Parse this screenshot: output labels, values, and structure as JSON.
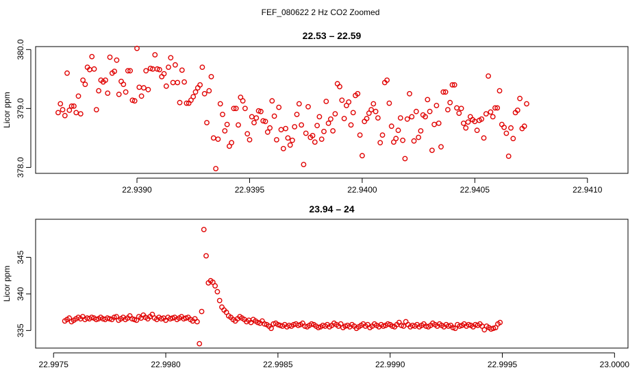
{
  "figure": {
    "suptitle": "FEF_080622  2 Hz CO2 Zoomed"
  },
  "chart_data": [
    {
      "type": "scatter",
      "title": "22.53 – 22.59",
      "xlabel": "",
      "ylabel": "Licor ppm",
      "xlim": [
        22.93855,
        22.94118
      ],
      "ylim": [
        377.9,
        380.05
      ],
      "xticks": [
        22.939,
        22.9395,
        22.94,
        22.9405,
        22.941
      ],
      "xtick_labels": [
        "22.9390",
        "22.9395",
        "22.9400",
        "22.9405",
        "22.9410"
      ],
      "yticks": [
        378,
        379,
        380
      ],
      "ytick_labels": [
        "378.0",
        "379.0",
        "380.0"
      ],
      "grid": false,
      "marker": "open-circle",
      "color": "#e00000",
      "x_start": 22.93865,
      "x_step": 1e-05,
      "y": [
        378.93,
        379.08,
        378.98,
        378.88,
        379.6,
        378.97,
        379.04,
        379.04,
        378.93,
        379.21,
        378.91,
        379.48,
        379.41,
        379.7,
        379.66,
        379.88,
        379.67,
        378.98,
        379.3,
        379.48,
        379.45,
        379.48,
        379.26,
        379.87,
        379.6,
        379.63,
        379.82,
        379.24,
        379.46,
        379.41,
        379.28,
        379.64,
        379.64,
        379.14,
        379.13,
        380.02,
        379.36,
        379.21,
        379.35,
        379.64,
        379.32,
        379.68,
        379.67,
        379.91,
        379.67,
        379.66,
        379.54,
        379.59,
        379.38,
        379.7,
        379.86,
        379.44,
        379.74,
        379.44,
        379.1,
        379.65,
        379.45,
        379.09,
        379.09,
        379.14,
        379.2,
        379.28,
        379.35,
        379.4,
        379.7,
        379.25,
        378.76,
        379.3,
        379.54,
        378.5,
        377.98,
        378.48,
        379.08,
        378.9,
        378.62,
        378.73,
        378.36,
        378.42,
        379.0,
        379.0,
        378.72,
        379.19,
        379.13,
        379.0,
        378.57,
        378.47,
        378.86,
        378.76,
        378.84,
        378.96,
        378.95,
        378.79,
        378.78,
        378.6,
        378.67,
        379.13,
        378.87,
        378.47,
        379.02,
        378.64,
        378.32,
        378.66,
        378.5,
        378.38,
        378.46,
        378.69,
        378.9,
        379.08,
        378.72,
        378.05,
        378.58,
        379.03,
        378.51,
        378.54,
        378.43,
        378.71,
        378.86,
        378.48,
        378.61,
        379.12,
        378.75,
        378.82,
        378.62,
        378.91,
        379.42,
        379.37,
        379.14,
        378.83,
        379.05,
        379.11,
        378.72,
        378.93,
        379.22,
        379.25,
        378.55,
        378.2,
        378.78,
        378.83,
        378.92,
        378.98,
        379.08,
        378.95,
        378.84,
        378.42,
        378.55,
        379.44,
        379.48,
        379.09,
        378.7,
        378.43,
        378.49,
        378.63,
        378.84,
        378.46,
        378.15,
        378.82,
        379.25,
        378.86,
        378.45,
        378.95,
        378.51,
        378.62,
        378.89,
        378.86,
        379.15,
        378.95,
        378.29,
        378.73,
        379.05,
        378.75,
        378.35,
        379.28,
        379.28,
        378.98,
        379.1,
        379.4,
        379.4,
        379.01,
        378.92,
        379.0,
        378.75,
        378.67,
        378.77,
        378.86,
        378.81,
        378.78,
        378.63,
        378.8,
        378.82,
        378.5,
        378.91,
        379.55,
        378.94,
        378.86,
        379.01,
        379.01,
        379.3,
        378.73,
        378.68,
        378.58,
        378.19,
        378.67,
        378.49,
        378.93,
        378.97,
        379.17,
        378.66,
        378.7,
        379.08
      ]
    },
    {
      "type": "scatter",
      "title": "23.94 – 24",
      "xlabel": "",
      "ylabel": "Licor ppm",
      "xlim": [
        22.99742,
        23.00006
      ],
      "ylim": [
        332.6,
        350.2
      ],
      "xticks": [
        22.9975,
        22.998,
        22.9985,
        22.999,
        22.9995,
        23.0
      ],
      "xtick_labels": [
        "22.9975",
        "22.9980",
        "22.9985",
        "22.9990",
        "22.9995",
        "23.0000"
      ],
      "yticks": [
        335,
        340,
        345
      ],
      "ytick_labels": [
        "335",
        "340",
        "345"
      ],
      "grid": false,
      "marker": "open-circle",
      "color": "#e00000",
      "x_start": 22.99755,
      "x_step": 1e-05,
      "y": [
        336.3,
        336.5,
        336.7,
        336.2,
        336.4,
        336.6,
        336.8,
        336.6,
        336.9,
        336.5,
        336.7,
        336.6,
        336.8,
        336.7,
        336.5,
        336.6,
        336.8,
        336.6,
        336.5,
        336.7,
        336.6,
        336.5,
        336.8,
        336.9,
        336.4,
        336.6,
        336.8,
        336.5,
        336.7,
        337.0,
        336.6,
        336.5,
        336.4,
        336.9,
        336.7,
        337.1,
        336.8,
        336.6,
        336.9,
        337.2,
        336.7,
        336.5,
        336.8,
        336.6,
        336.7,
        336.4,
        336.8,
        336.6,
        336.7,
        336.8,
        336.5,
        336.7,
        336.9,
        336.6,
        336.7,
        336.8,
        336.5,
        336.3,
        336.6,
        336.2,
        333.2,
        337.6,
        348.8,
        345.2,
        341.5,
        341.8,
        341.6,
        341.1,
        340.3,
        339.1,
        338.2,
        337.8,
        337.5,
        337.0,
        336.8,
        336.5,
        336.3,
        336.6,
        336.9,
        336.7,
        336.5,
        336.2,
        336.4,
        336.1,
        336.5,
        336.3,
        336.1,
        336.0,
        336.3,
        335.9,
        335.8,
        335.6,
        335.3,
        335.9,
        336.0,
        335.8,
        335.7,
        335.6,
        335.8,
        335.5,
        335.7,
        335.6,
        335.8,
        335.9,
        335.7,
        335.8,
        336.0,
        335.6,
        335.5,
        335.7,
        335.9,
        335.8,
        335.6,
        335.4,
        335.5,
        335.7,
        335.6,
        335.8,
        335.5,
        335.7,
        336.0,
        335.8,
        335.6,
        335.9,
        335.4,
        335.6,
        335.7,
        335.5,
        335.8,
        335.6,
        335.3,
        335.5,
        335.7,
        335.9,
        335.6,
        335.8,
        335.4,
        335.6,
        335.9,
        335.7,
        335.5,
        335.8,
        335.6,
        335.7,
        335.9,
        335.8,
        335.6,
        335.5,
        335.8,
        336.1,
        335.7,
        335.6,
        336.2,
        335.8,
        335.5,
        335.7,
        335.6,
        335.8,
        335.5,
        335.7,
        335.9,
        335.6,
        335.5,
        335.7,
        336.0,
        335.8,
        335.6,
        335.9,
        335.7,
        335.5,
        335.8,
        335.6,
        335.7,
        335.4,
        335.3,
        335.8,
        335.6,
        335.7,
        335.9,
        335.6,
        335.8,
        335.7,
        335.5,
        335.8,
        335.7,
        335.9,
        335.6,
        335.1,
        335.6,
        335.4,
        335.2,
        335.3,
        335.4,
        335.9,
        336.1
      ]
    }
  ]
}
